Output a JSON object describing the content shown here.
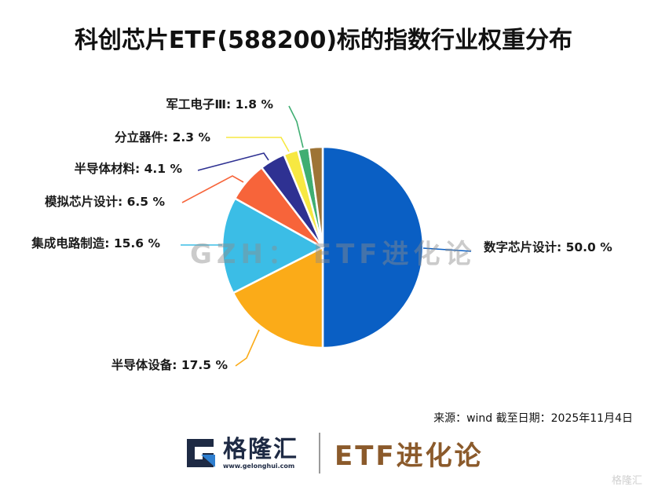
{
  "title": "科创芯片ETF(588200)标的指数行业权重分布",
  "watermark": "GZH： ETF进化论",
  "source": "来源：wind 截至日期：2025年11月4日",
  "footer": {
    "logo_cn": "格隆汇",
    "logo_url": "www.gelonghui.com",
    "brand": "ETF进化论"
  },
  "corner_watermark": "格隆汇",
  "chart_data": {
    "type": "pie",
    "title": "科创芯片ETF(588200)标的指数行业权重分布",
    "unit": "%",
    "start_angle": "12 o'clock, clockwise",
    "slices": [
      {
        "label": "数字芯片设计",
        "value": 50.0,
        "color": "#0a5fc4",
        "text": "数字芯片设计: 50.0 %"
      },
      {
        "label": "半导体设备",
        "value": 17.5,
        "color": "#fbab18",
        "text": "半导体设备: 17.5 %"
      },
      {
        "label": "集成电路制造",
        "value": 15.6,
        "color": "#3bbde6",
        "text": "集成电路制造: 15.6 %"
      },
      {
        "label": "模拟芯片设计",
        "value": 6.5,
        "color": "#f7643a",
        "text": "模拟芯片设计: 6.5 %"
      },
      {
        "label": "半导体材料",
        "value": 4.1,
        "color": "#2e3192",
        "text": "半导体材料: 4.1 %"
      },
      {
        "label": "分立器件",
        "value": 2.3,
        "color": "#f7e842",
        "text": "分立器件: 2.3 %"
      },
      {
        "label": "军工电子Ⅲ",
        "value": 1.8,
        "color": "#3fae72",
        "text": "军工电子Ⅲ: 1.8 %"
      },
      {
        "label": "",
        "value": 2.2,
        "color": "#9e7436",
        "text": ""
      }
    ]
  }
}
